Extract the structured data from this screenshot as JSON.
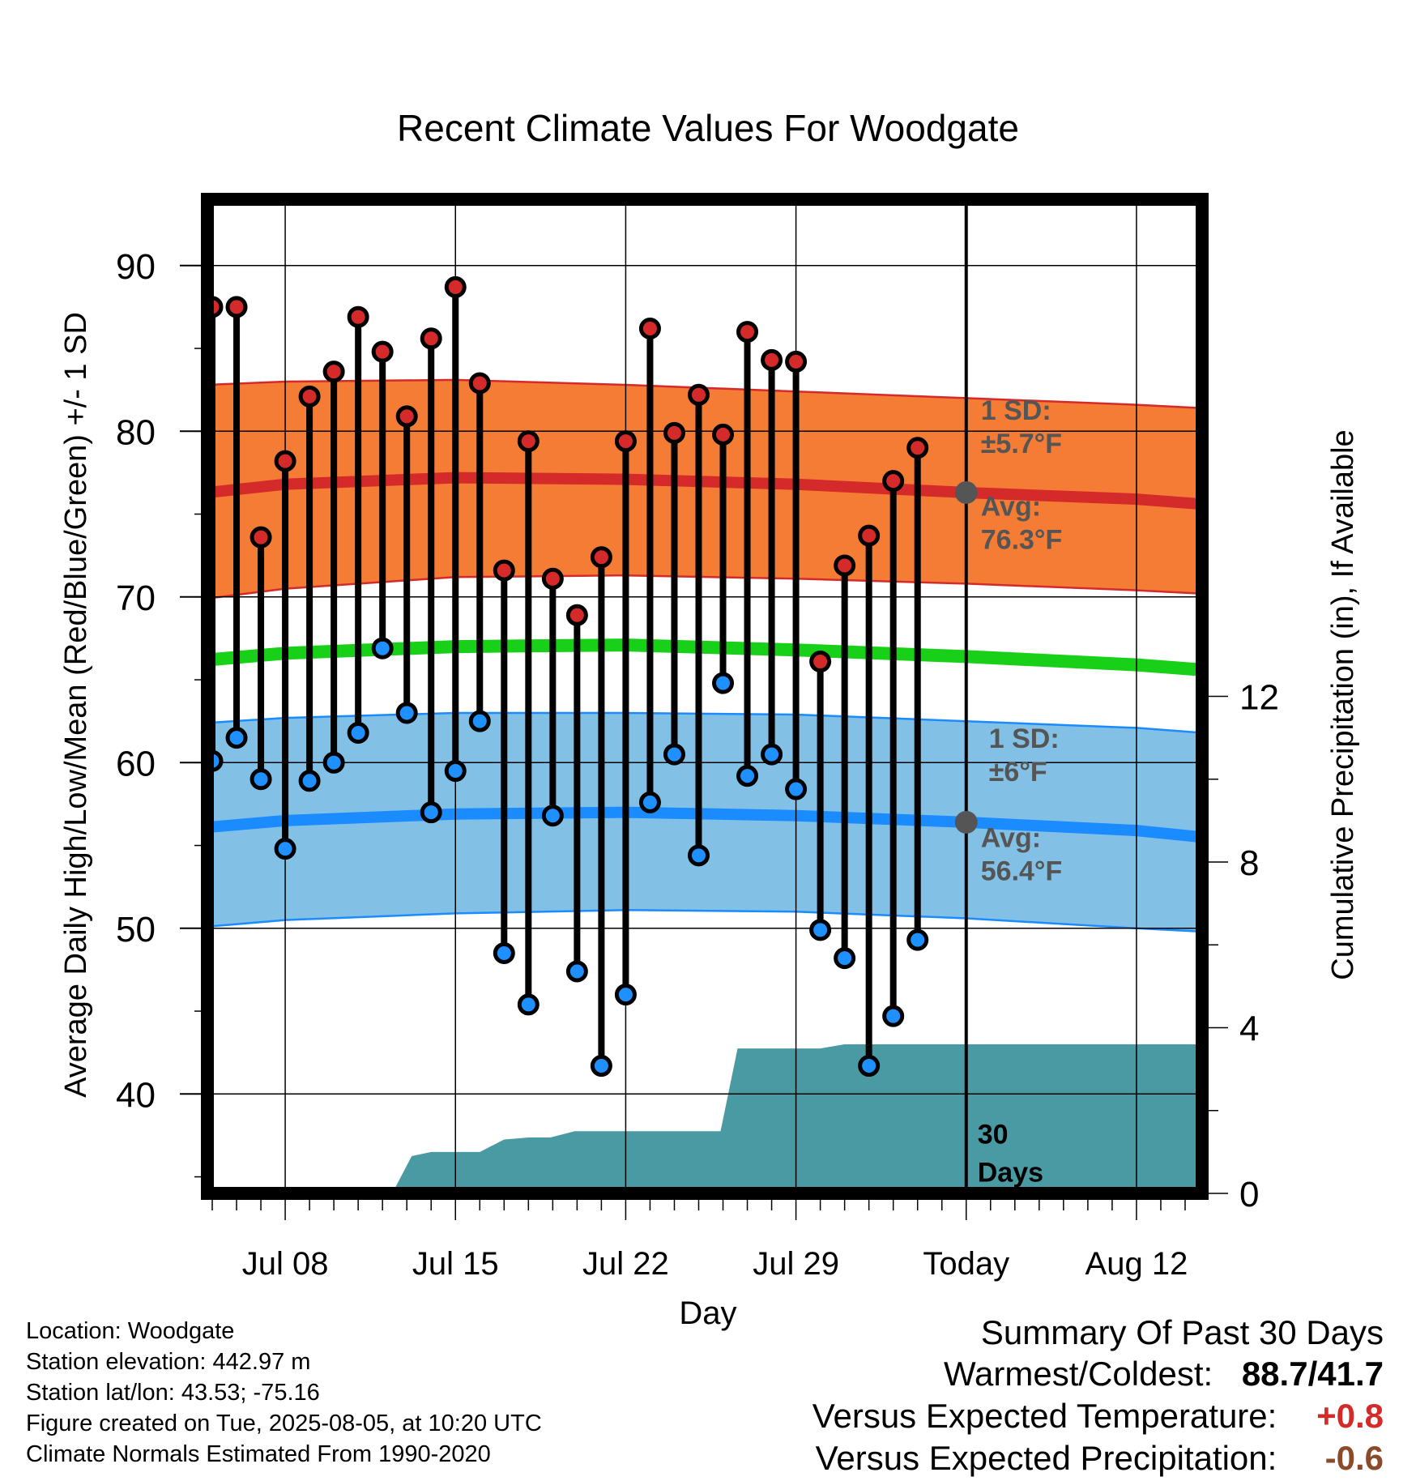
{
  "chart_data": {
    "type": "line",
    "title": "Recent Climate Values For Woodgate",
    "xlabel": "Day",
    "ylabel": "Average Daily High/Low/Mean (Red/Blue/Green) +/- 1 SD",
    "y2label": "Cumulative Precipitation (in), If Available",
    "ylim": [
      34,
      94
    ],
    "y2lim": [
      0,
      24
    ],
    "yticks": [
      "40",
      "50",
      "60",
      "70",
      "80",
      "90"
    ],
    "y2ticks": [
      "0",
      "4",
      "8",
      "12"
    ],
    "xticks": [
      {
        "day": 8,
        "label": "Jul 08"
      },
      {
        "day": 15,
        "label": "Jul 15"
      },
      {
        "day": 22,
        "label": "Jul 22"
      },
      {
        "day": 29,
        "label": "Jul 29"
      },
      {
        "day": 36,
        "label": "Today"
      },
      {
        "day": 43,
        "label": "Aug 12"
      }
    ],
    "xlim": [
      4.8,
      45.7
    ],
    "today_day": 36,
    "days": [
      5,
      6,
      7,
      8,
      9,
      10,
      11,
      12,
      13,
      14,
      15,
      16,
      17,
      18,
      19,
      20,
      21,
      22,
      23,
      24,
      25,
      26,
      27,
      28,
      29,
      30,
      31,
      32,
      33,
      34
    ],
    "daily_high": [
      87.5,
      87.5,
      73.6,
      78.2,
      82.1,
      83.6,
      86.9,
      84.8,
      80.9,
      85.6,
      88.7,
      82.9,
      71.6,
      79.4,
      71.1,
      68.9,
      72.4,
      79.4,
      86.2,
      79.9,
      82.2,
      79.8,
      86.0,
      84.3,
      84.2,
      66.1,
      71.9,
      73.7,
      77.0,
      79.0
    ],
    "daily_low": [
      60.1,
      61.5,
      59.0,
      54.8,
      58.9,
      60.0,
      61.8,
      66.9,
      63.0,
      57.0,
      59.5,
      62.5,
      48.5,
      45.4,
      56.8,
      47.4,
      41.7,
      46.0,
      57.6,
      60.5,
      54.4,
      64.8,
      59.2,
      60.5,
      58.4,
      49.9,
      48.2,
      41.7,
      44.7,
      49.3
    ],
    "normals_days": [
      4.8,
      8,
      15,
      22,
      29,
      36,
      43,
      45.7
    ],
    "normal_high": [
      76.3,
      76.8,
      77.2,
      77.1,
      76.8,
      76.3,
      75.9,
      75.6
    ],
    "normal_high_sd_upper": [
      82.8,
      83.0,
      83.1,
      82.8,
      82.4,
      82.0,
      81.6,
      81.4
    ],
    "normal_high_sd_lower": [
      69.9,
      70.5,
      71.2,
      71.3,
      71.1,
      70.8,
      70.4,
      70.2
    ],
    "normal_mean": [
      66.2,
      66.6,
      67.0,
      67.1,
      66.8,
      66.4,
      65.9,
      65.6
    ],
    "normal_low": [
      56.1,
      56.5,
      56.9,
      57.0,
      56.8,
      56.4,
      55.9,
      55.5
    ],
    "normal_low_sd_upper": [
      62.4,
      62.7,
      63.0,
      63.0,
      62.9,
      62.5,
      62.1,
      61.8
    ],
    "normal_low_sd_lower": [
      50.1,
      50.5,
      50.9,
      51.1,
      51.0,
      50.6,
      50.0,
      49.8
    ],
    "precip_days": [
      4.8,
      12.4,
      13.2,
      14.0,
      15.2,
      16.0,
      17.0,
      18.0,
      18.9,
      19.9,
      20.9,
      21.9,
      22.9,
      23.9,
      24.9,
      25.9,
      26.6,
      27.0,
      28.0,
      29.0,
      30.0,
      31.0,
      32.0,
      33.0,
      34.0,
      35.0,
      36.0,
      45.7
    ],
    "precip_cum": [
      0,
      0,
      0.9,
      1.0,
      1.0,
      1.0,
      1.3,
      1.35,
      1.35,
      1.5,
      1.5,
      1.5,
      1.5,
      1.5,
      1.5,
      1.5,
      3.5,
      3.5,
      3.5,
      3.5,
      3.5,
      3.6,
      3.6,
      3.6,
      3.6,
      3.6,
      3.6,
      3.6
    ],
    "annotations": {
      "high_sd_line1": "1 SD:",
      "high_sd_line2": "±5.7°F",
      "high_avg_line1": "Avg:",
      "high_avg_line2": "76.3°F",
      "low_sd_line1": "1 SD:",
      "low_sd_line2": "±6°F",
      "low_avg_line1": "Avg:",
      "low_avg_line2": "56.4°F",
      "window_line1": "30",
      "window_line2": "Days"
    },
    "grid": true,
    "colors": {
      "high_band": "#f47c34",
      "high_line": "#d52a2a",
      "mean_line": "#19d019",
      "low_band": "#82c1e5",
      "low_line": "#1a8cff",
      "precip": "#4a9aa3",
      "high_marker": "#d42a2a",
      "low_marker": "#1e90ff",
      "annotation": "#555555"
    }
  },
  "info": {
    "location": "Location: Woodgate",
    "elevation": "Station elevation: 442.97 m",
    "latlon": "Station lat/lon: 43.53; -75.16",
    "created": "Figure created on Tue, 2025-08-05, at 10:20 UTC",
    "normals": "Climate Normals Estimated From 1990-2020"
  },
  "summary": {
    "heading": "Summary Of Past 30 Days",
    "warmest_label": "Warmest/Coldest:",
    "warmest_value": "88.7/41.7",
    "temp_label": "Versus Expected Temperature:",
    "temp_value": "+0.8",
    "temp_color": "#d42a2a",
    "precip_label": "Versus Expected Precipitation:",
    "precip_value": "-0.6",
    "precip_color": "#8b4a2a"
  }
}
